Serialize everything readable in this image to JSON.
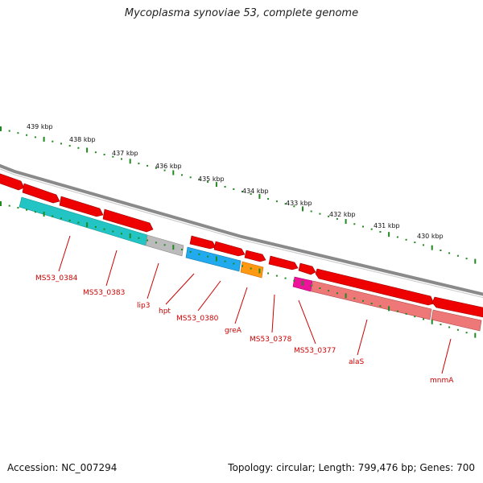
{
  "title": "Mycoplasma synoviae 53, complete genome",
  "footer": {
    "accession": "Accession: NC_007294",
    "summary": "Topology: circular; Length: 799,476 bp; Genes: 700"
  },
  "colors": {
    "backbone": "#888888",
    "ticks": "#1f8a1f",
    "gene_forward": "#ee0000",
    "label": "#cc0000"
  },
  "kbp_labels": [
    "439 kbp",
    "438 kbp",
    "437 kbp",
    "436 kbp",
    "435 kbp",
    "434 kbp",
    "433 kbp",
    "432 kbp",
    "431 kbp",
    "430 kbp"
  ],
  "gene_labels": [
    "MS53_0384",
    "MS53_0383",
    "lip3",
    "hpt",
    "MS53_0380",
    "greA",
    "MS53_0378",
    "MS53_0377",
    "alaS",
    "mnmA"
  ]
}
